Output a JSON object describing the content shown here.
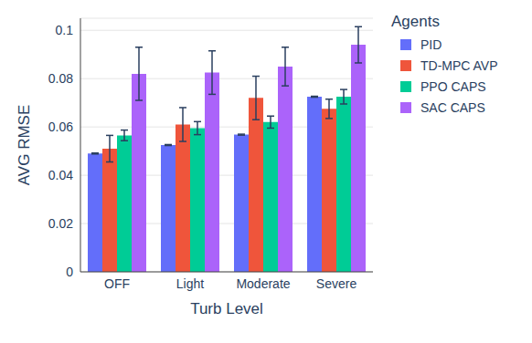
{
  "chart_data": {
    "type": "bar",
    "x_label": "Turb Level",
    "y_label": "AVG RMSE",
    "legend_title": "Agents",
    "legend": "right",
    "grid": true,
    "categories": [
      "OFF",
      "Light",
      "Moderate",
      "Severe"
    ],
    "ylim": [
      0,
      0.105
    ],
    "yticks": [
      0,
      0.02,
      0.04,
      0.06,
      0.08,
      0.1
    ],
    "series": [
      {
        "name": "PID",
        "color": "#636efa",
        "values": [
          0.049,
          0.0525,
          0.0568,
          0.0725
        ],
        "errors": [
          0.0002,
          0.0002,
          0.0002,
          0.0002
        ]
      },
      {
        "name": "TD-MPC AVP",
        "color": "#ef553b",
        "values": [
          0.051,
          0.061,
          0.072,
          0.0675
        ],
        "errors": [
          0.0055,
          0.007,
          0.009,
          0.004
        ]
      },
      {
        "name": "PPO CAPS",
        "color": "#00cc96",
        "values": [
          0.0565,
          0.0595,
          0.062,
          0.0725
        ],
        "errors": [
          0.0022,
          0.0027,
          0.0025,
          0.003
        ]
      },
      {
        "name": "SAC CAPS",
        "color": "#ab63fa",
        "values": [
          0.082,
          0.0825,
          0.085,
          0.094
        ],
        "errors": [
          0.011,
          0.009,
          0.008,
          0.0075
        ]
      }
    ]
  }
}
